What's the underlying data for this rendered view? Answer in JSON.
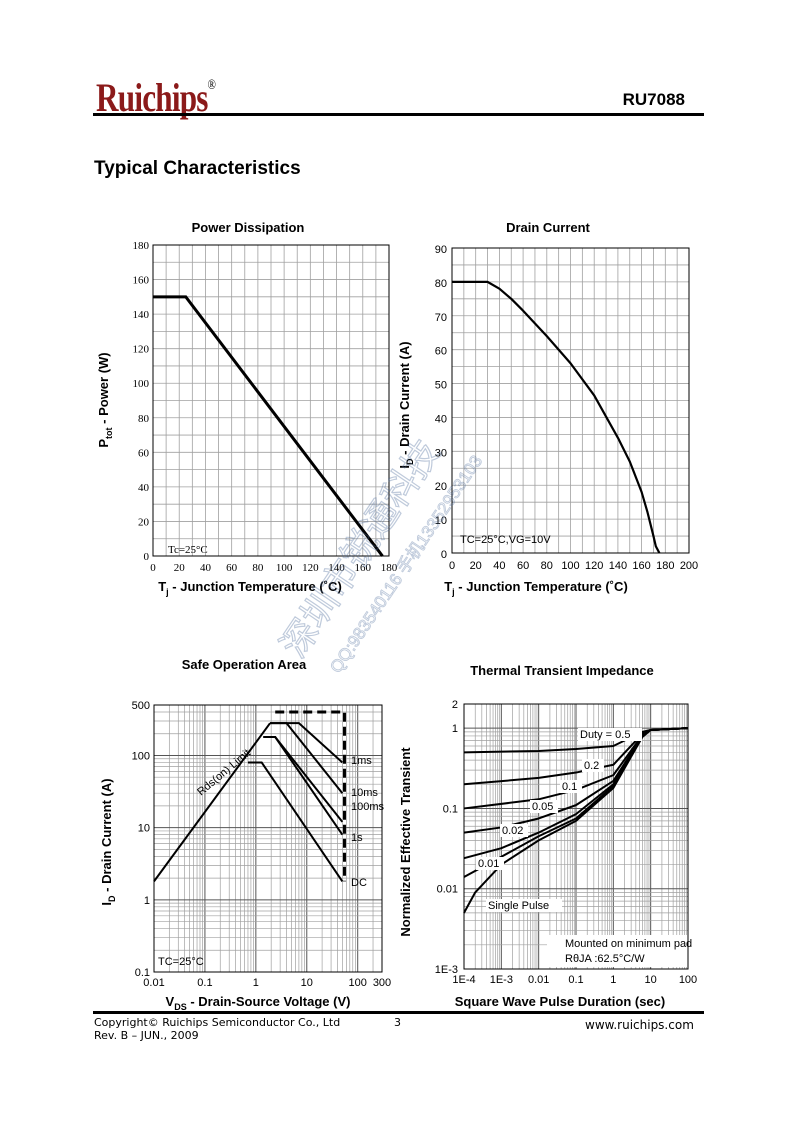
{
  "header": {
    "logo_text": "Ruichips",
    "logo_mark": "®",
    "part_number": "RU7088"
  },
  "section_title": "Typical Characteristics",
  "footer": {
    "copyright": "Copyright© Ruichips Semiconductor Co., Ltd",
    "revision": "Rev. B – JUN., 2009",
    "page": "3",
    "url": "www.ruichips.com"
  },
  "watermark": {
    "line1": "深圳市锐通科技",
    "line2": "QQ:983540116  手机13352953103"
  },
  "colors": {
    "logo": "#8b1a1a",
    "ink": "#000000",
    "grid": "#a0a0a0"
  },
  "chart_data": [
    {
      "id": "power",
      "type": "line",
      "title": "Power Dissipation",
      "ylabel": "Ptot - Power (W)",
      "ylabel_main": "P",
      "ylabel_sub": "tot",
      "ylabel_rest": " - Power (W)",
      "xlabel_main": "T",
      "xlabel_sub": "j",
      "xlabel_rest": " - Junction Temperature (˚C)",
      "xlim": [
        0,
        180
      ],
      "ylim": [
        0,
        180
      ],
      "xticks": [
        0,
        20,
        40,
        60,
        80,
        100,
        120,
        140,
        160,
        180
      ],
      "yticks": [
        0,
        20,
        40,
        60,
        80,
        100,
        120,
        140,
        160,
        180
      ],
      "grid": true,
      "annotation": "Tc=25°C",
      "series": [
        {
          "x": [
            0,
            25,
            175
          ],
          "y": [
            150,
            150,
            0
          ]
        }
      ]
    },
    {
      "id": "drain",
      "type": "line",
      "title": "Drain Current",
      "ylabel_main": "I",
      "ylabel_sub": "D",
      "ylabel_rest": " - Drain Current (A)",
      "xlabel_main": "T",
      "xlabel_sub": "j",
      "xlabel_rest": " - Junction Temperature (˚C)",
      "xlim": [
        0,
        200
      ],
      "ylim": [
        0,
        90
      ],
      "xticks": [
        0,
        20,
        40,
        60,
        80,
        100,
        120,
        140,
        160,
        180,
        200
      ],
      "yticks": [
        0,
        10,
        20,
        30,
        40,
        50,
        60,
        70,
        80,
        90
      ],
      "grid": true,
      "annotation": "TC=25°C,VG=10V",
      "series": [
        {
          "x": [
            0,
            30,
            40,
            50,
            60,
            80,
            100,
            120,
            140,
            150,
            160,
            165,
            170,
            172,
            175
          ],
          "y": [
            80,
            80,
            78,
            75,
            71.5,
            64,
            56,
            46.5,
            34,
            27,
            18,
            12,
            5,
            2,
            0
          ]
        }
      ]
    },
    {
      "id": "soa",
      "type": "line",
      "title": "Safe Operation Area",
      "ylabel_main": "I",
      "ylabel_sub": "D",
      "ylabel_rest": " - Drain Current (A)",
      "xlabel_main": "V",
      "xlabel_sub": "DS",
      "xlabel_rest": " - Drain-Source Voltage (V)",
      "xscale": "log",
      "yscale": "log",
      "xlim": [
        0.01,
        300
      ],
      "ylim": [
        0.1,
        500
      ],
      "xticks": [
        0.01,
        0.1,
        1,
        10,
        100,
        300
      ],
      "xticklabels": [
        "0.01",
        "0.1",
        "1",
        "10",
        "100",
        "300"
      ],
      "yticks": [
        0.1,
        1,
        10,
        100,
        500
      ],
      "yticklabels": [
        "0.1",
        "1",
        "10",
        "100",
        "500"
      ],
      "grid": true,
      "annotation": "TC=25°C",
      "rds_label": "Rds(on) Limit",
      "curve_labels": [
        "1ms",
        "10ms",
        "100ms",
        "1s",
        "DC"
      ],
      "series": [
        {
          "name": "Rds(on) Limit",
          "x": [
            0.01,
            1.9
          ],
          "y": [
            1.8,
            280
          ]
        },
        {
          "name": "1ms",
          "x": [
            1.9,
            7,
            50
          ],
          "y": [
            280,
            280,
            80
          ]
        },
        {
          "name": "10ms",
          "x": [
            1.9,
            4,
            50
          ],
          "y": [
            280,
            280,
            30
          ]
        },
        {
          "name": "100ms",
          "x": [
            1.4,
            2.4,
            50
          ],
          "y": [
            180,
            180,
            12
          ]
        },
        {
          "name": "1s",
          "x": [
            1.4,
            2.4,
            50
          ],
          "y": [
            180,
            180,
            8
          ]
        },
        {
          "name": "DC",
          "x": [
            0.7,
            1.3,
            50
          ],
          "y": [
            80,
            80,
            1.8
          ]
        },
        {
          "name": "limit-dashed",
          "x": [
            2.4,
            55,
            55
          ],
          "y": [
            400,
            400,
            1.8
          ]
        }
      ]
    },
    {
      "id": "thermal",
      "type": "line",
      "title": "Thermal Transient Impedance",
      "ylabel": "Normalized Effective Transient",
      "xlabel": "Square Wave Pulse Duration (sec)",
      "xscale": "log",
      "yscale": "log",
      "xlim": [
        0.0001,
        100
      ],
      "ylim": [
        0.001,
        2
      ],
      "xticks": [
        0.0001,
        0.001,
        0.01,
        0.1,
        1,
        10,
        100
      ],
      "xticklabels": [
        "1E-4",
        "1E-3",
        "0.01",
        "0.1",
        "1",
        "10",
        "100"
      ],
      "yticks": [
        0.001,
        0.01,
        0.1,
        1,
        2
      ],
      "yticklabels": [
        "1E-3",
        "0.01",
        "0.1",
        "1",
        "2"
      ],
      "grid": true,
      "duty_label": "Duty = 0.5",
      "note_line1": "Mounted on minimum pad",
      "note_line2": "RθJA :62.5°C/W",
      "series": [
        {
          "name": "0.5",
          "x": [
            0.0001,
            0.01,
            0.1,
            1,
            6,
            10,
            100
          ],
          "y": [
            0.5,
            0.52,
            0.55,
            0.6,
            0.9,
            0.95,
            1.0
          ]
        },
        {
          "name": "0.2",
          "x": [
            0.0001,
            0.01,
            0.1,
            1,
            6,
            10,
            100
          ],
          "y": [
            0.2,
            0.24,
            0.28,
            0.35,
            0.85,
            0.95,
            1.0
          ]
        },
        {
          "name": "0.1",
          "x": [
            0.0001,
            0.01,
            0.1,
            1,
            6,
            10,
            100
          ],
          "y": [
            0.1,
            0.13,
            0.17,
            0.26,
            0.82,
            0.95,
            1.0
          ]
        },
        {
          "name": "0.05",
          "x": [
            0.0001,
            0.001,
            0.01,
            0.1,
            1,
            6,
            10,
            100
          ],
          "y": [
            0.05,
            0.058,
            0.075,
            0.11,
            0.22,
            0.8,
            0.95,
            1.0
          ]
        },
        {
          "name": "0.02",
          "x": [
            0.0001,
            0.001,
            0.01,
            0.1,
            1,
            6,
            10,
            100
          ],
          "y": [
            0.024,
            0.032,
            0.05,
            0.085,
            0.2,
            0.8,
            0.95,
            1.0
          ]
        },
        {
          "name": "0.01",
          "x": [
            0.0001,
            0.001,
            0.01,
            0.1,
            1,
            6,
            10,
            100
          ],
          "y": [
            0.014,
            0.025,
            0.045,
            0.075,
            0.19,
            0.78,
            0.95,
            1.0
          ]
        },
        {
          "name": "Single Pulse",
          "x": [
            0.0001,
            0.0002,
            0.001,
            0.01,
            0.1,
            1,
            6,
            10,
            100
          ],
          "y": [
            0.005,
            0.009,
            0.02,
            0.04,
            0.07,
            0.18,
            0.78,
            0.95,
            1.0
          ]
        }
      ]
    }
  ]
}
